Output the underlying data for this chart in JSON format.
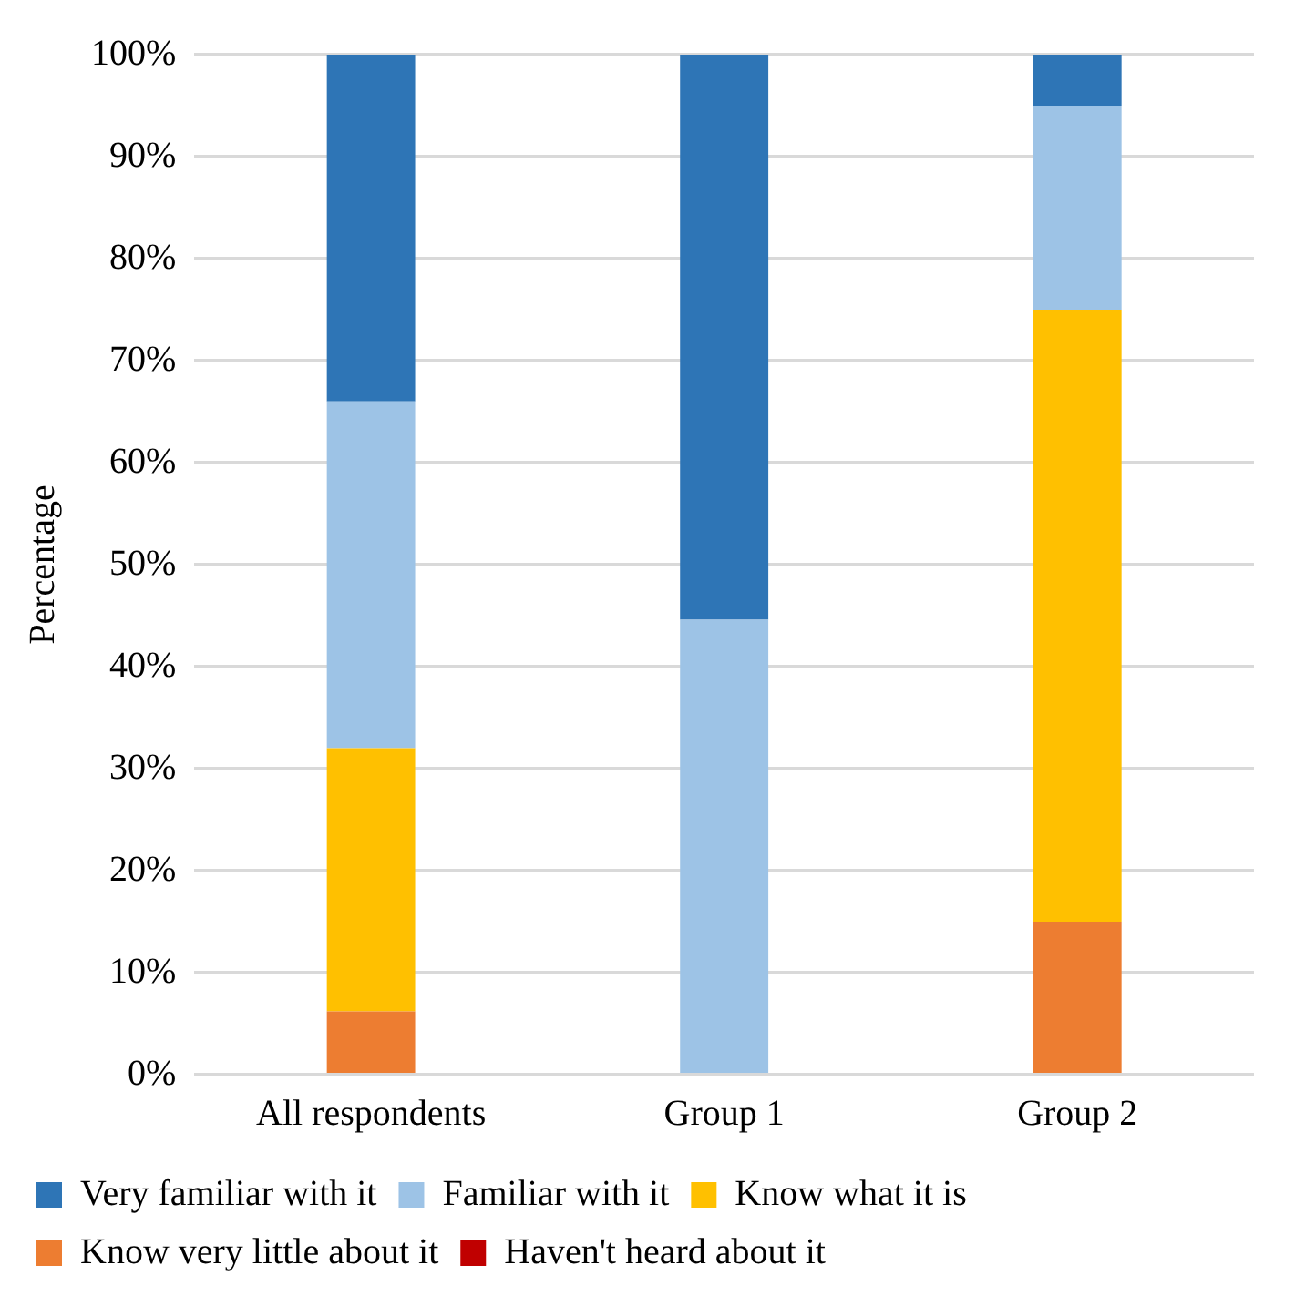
{
  "chart_data": {
    "type": "bar",
    "stacked": true,
    "ylabel": "Percentage",
    "categories": [
      "All respondents",
      "Group 1",
      "Group 2"
    ],
    "series": [
      {
        "name": "Haven't heard about it",
        "color": "#c00000",
        "values": [
          0,
          0,
          0
        ]
      },
      {
        "name": "Know very little about it",
        "color": "#ed7d31",
        "values": [
          6.2,
          0,
          15
        ]
      },
      {
        "name": "Know what it is",
        "color": "#ffc000",
        "values": [
          25.8,
          0,
          60
        ]
      },
      {
        "name": "Familiar with it",
        "color": "#9dc3e6",
        "values": [
          34,
          44.6,
          20
        ]
      },
      {
        "name": "Very familiar with it",
        "color": "#2e75b6",
        "values": [
          34,
          55.4,
          5
        ]
      }
    ],
    "ylim": [
      0,
      100
    ],
    "yticks": [
      {
        "value": 0,
        "label": "0%"
      },
      {
        "value": 10,
        "label": "10%"
      },
      {
        "value": 20,
        "label": "20%"
      },
      {
        "value": 30,
        "label": "30%"
      },
      {
        "value": 40,
        "label": "40%"
      },
      {
        "value": 50,
        "label": "50%"
      },
      {
        "value": 60,
        "label": "60%"
      },
      {
        "value": 70,
        "label": "70%"
      },
      {
        "value": 80,
        "label": "80%"
      },
      {
        "value": 90,
        "label": "90%"
      },
      {
        "value": 100,
        "label": "100%"
      }
    ],
    "grid": "y",
    "legend": "bottom"
  }
}
